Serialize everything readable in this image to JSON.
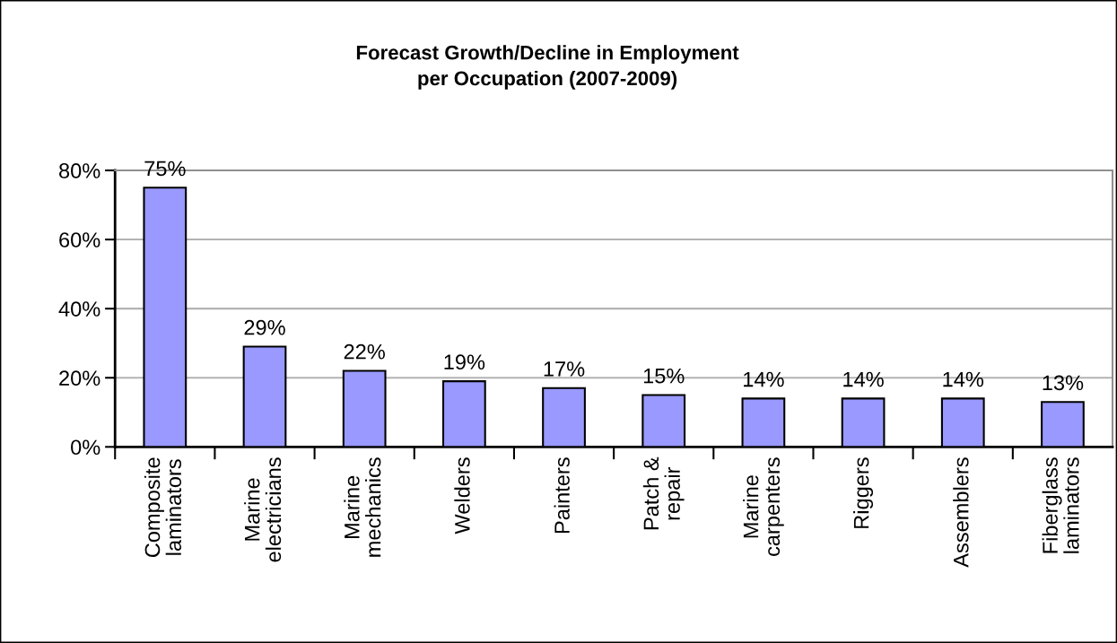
{
  "chart_data": {
    "type": "bar",
    "title": "Forecast Growth/Decline in Employment\nper Occupation (2007-2009)",
    "categories": [
      "Composite\nlaminators",
      "Marine\nelectricians",
      "Marine\nmechanics",
      "Welders",
      "Painters",
      "Patch &\nrepair",
      "Marine\ncarpenters",
      "Riggers",
      "Assemblers",
      "Fiberglass\nlaminators"
    ],
    "values": [
      75,
      29,
      22,
      19,
      17,
      15,
      14,
      14,
      14,
      13
    ],
    "value_labels": [
      "75%",
      "29%",
      "22%",
      "19%",
      "17%",
      "15%",
      "14%",
      "14%",
      "14%",
      "13%"
    ],
    "color": "#9999ff",
    "ylim": [
      0,
      80
    ],
    "yticks": [
      {
        "value": 0,
        "label": "0%"
      },
      {
        "value": 20,
        "label": "20%"
      },
      {
        "value": 40,
        "label": "40%"
      },
      {
        "value": 60,
        "label": "60%"
      },
      {
        "value": 80,
        "label": "80%"
      }
    ],
    "grid": "y",
    "legend": false
  }
}
